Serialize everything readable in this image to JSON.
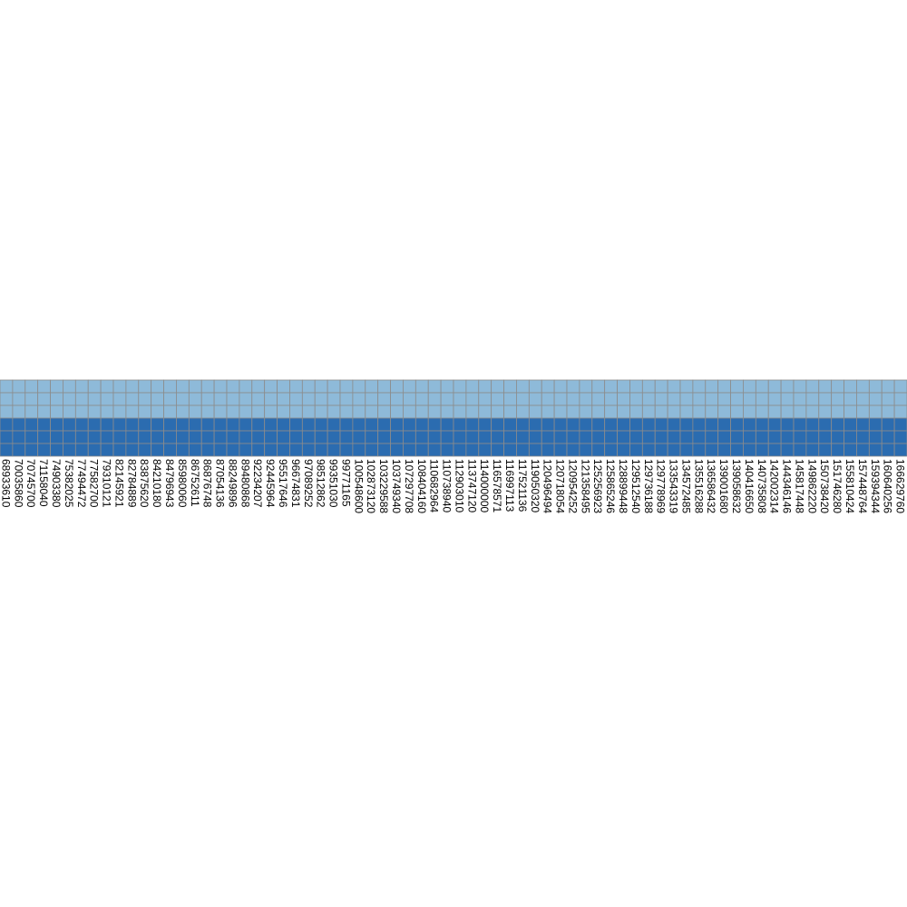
{
  "chart_data": {
    "type": "heatmap",
    "title": "",
    "xlabel": "",
    "ylabel": "",
    "legend": "none",
    "grid": true,
    "row_values": [
      0,
      0,
      0,
      1,
      1,
      1
    ],
    "colors": {
      "low": "#8ebad9",
      "high": "#2b6cb0",
      "cell_border": "#8c8c8c",
      "text": "#000000"
    },
    "x_tick_labels": [
      "68933610",
      "70035860",
      "70745700",
      "71158040",
      "74903380",
      "75382025",
      "77494472",
      "77582700",
      "79310121",
      "82145921",
      "82784889",
      "83875620",
      "84210180",
      "84796943",
      "85980060",
      "86752611",
      "86876748",
      "87054136",
      "88249896",
      "89480868",
      "92234207",
      "92445964",
      "95517646",
      "96674831",
      "97089252",
      "98512862",
      "99351030",
      "99771165",
      "100548600",
      "102873120",
      "103229588",
      "103749340",
      "107297708",
      "108404160",
      "110682964",
      "110738940",
      "112903010",
      "113747120",
      "114000000",
      "116578571",
      "116997113",
      "117521136",
      "119050320",
      "120496494",
      "120718054",
      "120954252",
      "121358495",
      "125256923",
      "125865246",
      "128899448",
      "129512540",
      "129736188",
      "129778969",
      "133543319",
      "134572485",
      "135516288",
      "136586432",
      "139001680",
      "139058632",
      "140416650",
      "140735808",
      "142002314",
      "144346146",
      "145817448",
      "149862220",
      "150738420",
      "151746280",
      "155810424",
      "157448764",
      "159394344",
      "160640256",
      "166629760"
    ]
  }
}
